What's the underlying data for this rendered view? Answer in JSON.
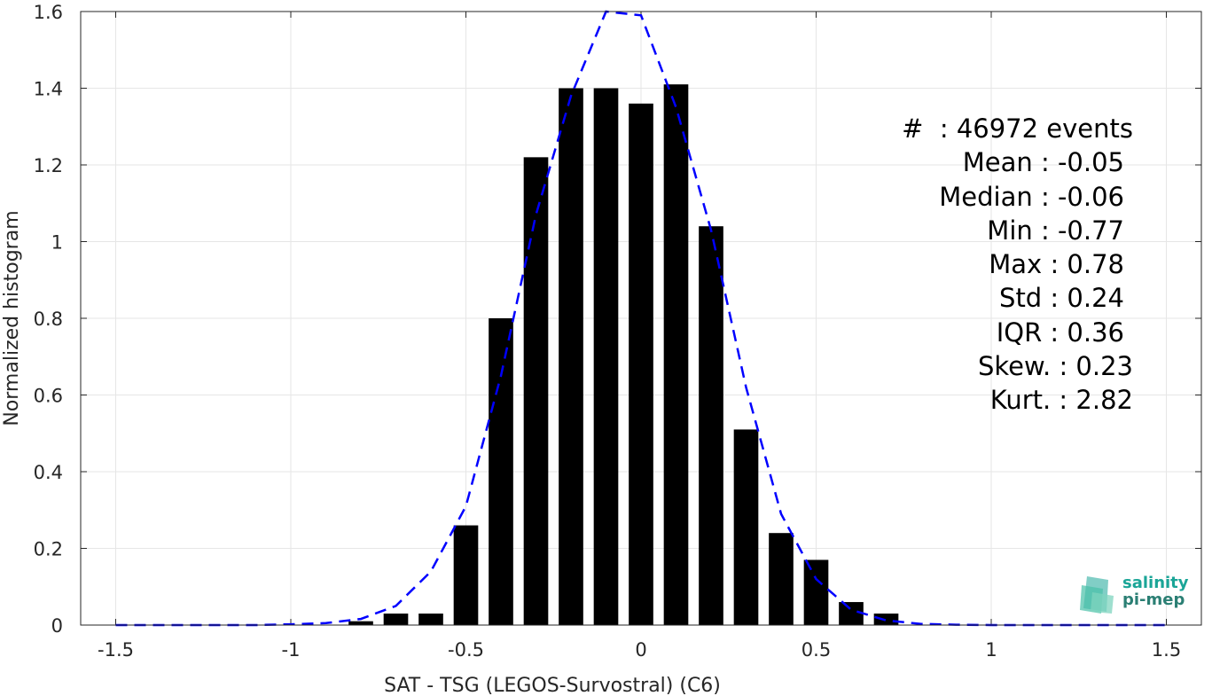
{
  "chart_data": {
    "type": "bar",
    "xlabel": "SAT - TSG (LEGOS-Survostral) (C6)",
    "ylabel": "Normalized histogram",
    "xlim": [
      -1.6,
      1.6
    ],
    "ylim": [
      0,
      1.6
    ],
    "xticks": [
      "-1.5",
      "-1",
      "-0.5",
      "0",
      "0.5",
      "1",
      "1.5"
    ],
    "yticks": [
      "0",
      "0.2",
      "0.4",
      "0.6",
      "0.8",
      "1",
      "1.2",
      "1.4",
      "1.6"
    ],
    "grid": true,
    "bin_width": 0.1,
    "bars": {
      "x": [
        -1.5,
        -1.4,
        -1.3,
        -1.2,
        -1.1,
        -1.0,
        -0.9,
        -0.8,
        -0.7,
        -0.6,
        -0.5,
        -0.4,
        -0.3,
        -0.2,
        -0.1,
        0.0,
        0.1,
        0.2,
        0.3,
        0.4,
        0.5,
        0.6,
        0.7,
        0.8,
        0.9,
        1.0,
        1.1,
        1.2,
        1.3,
        1.4,
        1.5
      ],
      "values": [
        0,
        0,
        0,
        0,
        0,
        0,
        0,
        0.01,
        0.03,
        0.03,
        0.26,
        0.8,
        1.22,
        1.4,
        1.4,
        1.36,
        1.41,
        1.04,
        0.51,
        0.24,
        0.17,
        0.06,
        0.03,
        0,
        0,
        0,
        0,
        0,
        0,
        0,
        0
      ],
      "color": "#000000"
    },
    "fit_line": {
      "style": "dashed",
      "color": "#0000ff",
      "x": [
        -1.5,
        -1.4,
        -1.3,
        -1.2,
        -1.1,
        -1.0,
        -0.9,
        -0.8,
        -0.7,
        -0.6,
        -0.5,
        -0.4,
        -0.3,
        -0.2,
        -0.1,
        0.0,
        0.1,
        0.2,
        0.3,
        0.4,
        0.5,
        0.6,
        0.7,
        0.8,
        0.9,
        1.0,
        1.1,
        1.2,
        1.3,
        1.4,
        1.5
      ],
      "y": [
        0,
        0,
        0,
        0,
        0,
        0.002,
        0.005,
        0.016,
        0.05,
        0.14,
        0.31,
        0.65,
        1.07,
        1.38,
        1.6,
        1.59,
        1.35,
        1.03,
        0.62,
        0.29,
        0.12,
        0.04,
        0.012,
        0.003,
        0.001,
        0,
        0,
        0,
        0,
        0,
        0
      ]
    },
    "annotation": [
      "#  : 46972 events",
      "Mean : -0.05",
      "Median : -0.06",
      "Min : -0.77",
      "Max : 0.78",
      "Std : 0.24",
      "IQR : 0.36",
      "Skew. : 0.23",
      "Kurt. : 2.82"
    ]
  },
  "logo": {
    "line1": "salinity",
    "line2": "pi-mep",
    "color": "#1aa597"
  }
}
